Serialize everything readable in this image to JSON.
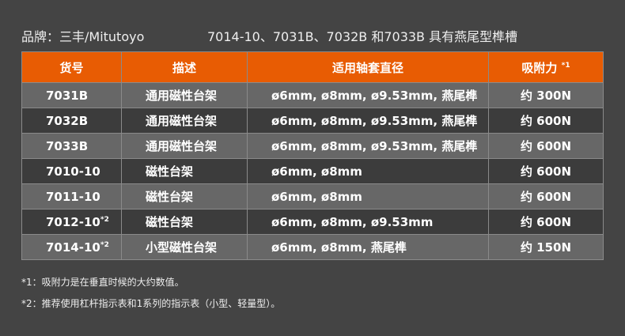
{
  "title": {
    "brand": "品牌：三丰/Mitutoyo",
    "note": "7014-10、7031B、7032B 和7033B 具有燕尾型榫槽"
  },
  "headers": [
    "货号",
    "描述",
    "适用轴套直径",
    "吸附力"
  ],
  "header_sup": "*1",
  "rows": [
    {
      "id": "7031B",
      "sup": "",
      "desc": "通用磁性台架",
      "dia": "ø6mm, ø8mm, ø9.53mm, 燕尾榫",
      "force": "约 300N"
    },
    {
      "id": "7032B",
      "sup": "",
      "desc": "通用磁性台架",
      "dia": "ø6mm, ø8mm, ø9.53mm, 燕尾榫",
      "force": "约 600N"
    },
    {
      "id": "7033B",
      "sup": "",
      "desc": "通用磁性台架",
      "dia": "ø6mm, ø8mm, ø9.53mm, 燕尾榫",
      "force": "约 600N"
    },
    {
      "id": "7010-10",
      "sup": "",
      "desc": "磁性台架",
      "dia": "ø6mm, ø8mm",
      "force": "约 600N"
    },
    {
      "id": "7011-10",
      "sup": "",
      "desc": "磁性台架",
      "dia": "ø6mm, ø8mm",
      "force": "约 600N"
    },
    {
      "id": "7012-10",
      "sup": "*2",
      "desc": "磁性台架",
      "dia": "ø6mm, ø8mm, ø9.53mm",
      "force": "约 600N"
    },
    {
      "id": "7014-10",
      "sup": "*2",
      "desc": "小型磁性台架",
      "dia": "ø6mm, ø8mm, 燕尾榫",
      "force": "约 150N"
    }
  ],
  "footnotes": [
    "*1：吸附力是在垂直时候的大约数值。",
    "*2：推荐使用杠杆指示表和1系列的指示表（小型、轻量型）。"
  ],
  "colors": {
    "header": "#e85c03",
    "row_light": "#676767",
    "row_dark": "#3c3c3c",
    "background": "#444444"
  }
}
